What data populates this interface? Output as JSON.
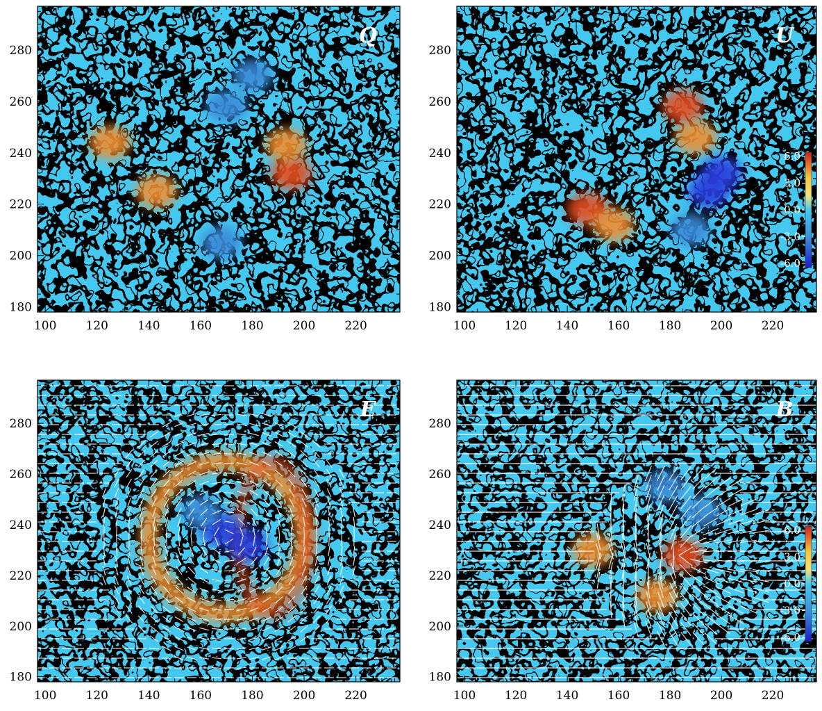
{
  "colors": {
    "deep_blue": "#2a3ddc",
    "blue": "#3a8ad8",
    "light_blue": "#45c8ef",
    "gray": "#9a9a9a",
    "yellow": "#f5c63a",
    "orange": "#ef8f30",
    "red": "#e45020"
  },
  "chart_data": [
    {
      "type": "heatmap",
      "label": "Q",
      "xlim": [
        97,
        237
      ],
      "ylim": [
        178,
        297
      ],
      "xticks": [
        "100",
        "120",
        "140",
        "160",
        "180",
        "200",
        "220"
      ],
      "yticks": [
        "180",
        "200",
        "220",
        "240",
        "260",
        "280"
      ],
      "features": [
        {
          "x": 195,
          "y": 232,
          "value": 5.0
        },
        {
          "x": 193,
          "y": 243,
          "value": 4.0
        },
        {
          "x": 143,
          "y": 225,
          "value": 3.5
        },
        {
          "x": 125,
          "y": 244,
          "value": 3.0
        },
        {
          "x": 168,
          "y": 205,
          "value": -4.0
        },
        {
          "x": 170,
          "y": 258,
          "value": -3.5
        },
        {
          "x": 180,
          "y": 270,
          "value": -2.5
        }
      ],
      "vectors": false,
      "colorbar": null
    },
    {
      "type": "heatmap",
      "label": "U",
      "xlim": [
        97,
        237
      ],
      "ylim": [
        178,
        297
      ],
      "xticks": [
        "100",
        "120",
        "140",
        "160",
        "180",
        "200",
        "220"
      ],
      "yticks": [
        "180",
        "200",
        "220",
        "240",
        "260",
        "280"
      ],
      "features": [
        {
          "x": 185,
          "y": 258,
          "value": 5.0
        },
        {
          "x": 190,
          "y": 246,
          "value": 4.0
        },
        {
          "x": 148,
          "y": 218,
          "value": 4.5
        },
        {
          "x": 158,
          "y": 212,
          "value": 3.5
        },
        {
          "x": 195,
          "y": 225,
          "value": -6.0
        },
        {
          "x": 188,
          "y": 210,
          "value": -4.0
        },
        {
          "x": 200,
          "y": 232,
          "value": -4.5
        }
      ],
      "vectors": false,
      "colorbar": {
        "labels": [
          "6.0",
          "3.0",
          "0.0",
          "-3.0",
          "-6.0"
        ],
        "range": [
          -6,
          6
        ]
      }
    },
    {
      "type": "heatmap",
      "label": "E",
      "xlim": [
        97,
        237
      ],
      "ylim": [
        178,
        297
      ],
      "xticks": [
        "100",
        "120",
        "140",
        "160",
        "180",
        "200",
        "220"
      ],
      "yticks": [
        "180",
        "200",
        "220",
        "240",
        "260",
        "280"
      ],
      "ring": {
        "cx": 170,
        "cy": 235,
        "r": 30,
        "value": 5.0
      },
      "features": [
        {
          "x": 168,
          "y": 238,
          "value": -4.5
        },
        {
          "x": 178,
          "y": 232,
          "value": -5.0
        },
        {
          "x": 160,
          "y": 245,
          "value": -4.0
        }
      ],
      "vectors": true,
      "colorbar": null
    },
    {
      "type": "heatmap",
      "label": "B",
      "xlim": [
        97,
        237
      ],
      "ylim": [
        178,
        297
      ],
      "xticks": [
        "100",
        "120",
        "140",
        "160",
        "180",
        "200",
        "220"
      ],
      "yticks": [
        "180",
        "200",
        "220",
        "240",
        "260",
        "280"
      ],
      "features": [
        {
          "x": 150,
          "y": 230,
          "value": 4.0
        },
        {
          "x": 185,
          "y": 228,
          "value": 4.5
        },
        {
          "x": 175,
          "y": 212,
          "value": 3.0
        },
        {
          "x": 178,
          "y": 255,
          "value": -4.0
        },
        {
          "x": 192,
          "y": 245,
          "value": -3.5
        }
      ],
      "vectors": true,
      "colorbar": {
        "labels": [
          "6.0",
          "3.0",
          "0.0",
          "-3.0",
          "-6.0"
        ],
        "range": [
          -6,
          6
        ]
      }
    }
  ]
}
